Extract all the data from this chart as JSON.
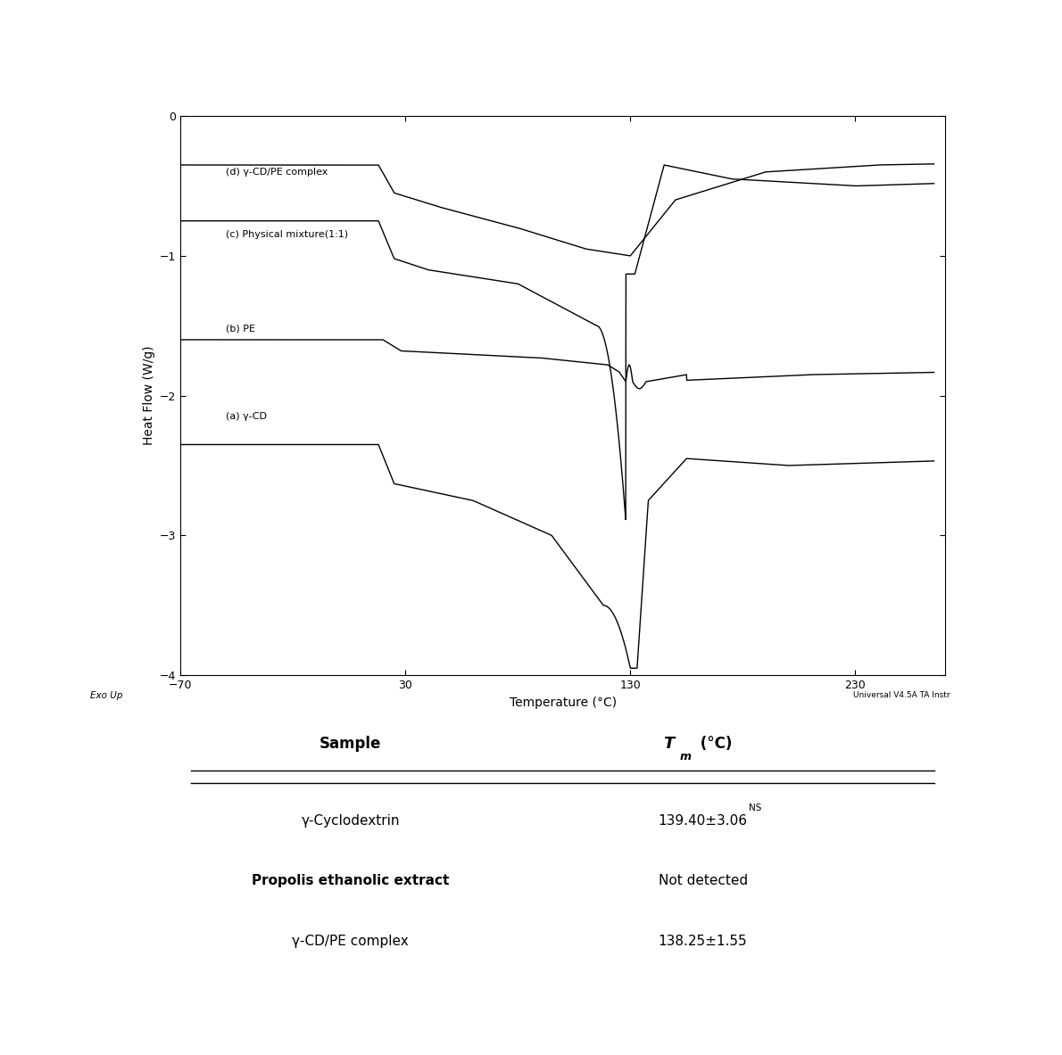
{
  "xlim": [
    -70,
    270
  ],
  "ylim": [
    -4,
    0
  ],
  "yticks": [
    0,
    -1,
    -2,
    -3,
    -4
  ],
  "xticks": [
    -70,
    30,
    130,
    230
  ],
  "xlabel": "Temperature (°C)",
  "ylabel": "Heat Flow (W/g)",
  "exo_up_label": "Exo Up",
  "universal_label": "Universal V4.5A TA Instr",
  "curve_color": "#000000",
  "background_color": "#ffffff",
  "label_d": "(d) γ-CD/PE complex",
  "label_c": "(c) Physical mixture(1:1)",
  "label_b": "(b) PE",
  "label_a": "(a) γ-CD",
  "table_header_sample": "Sample",
  "table_header_T": "T",
  "table_header_m": "m",
  "table_header_unit": " (°C)",
  "row1_sample": "γ-Cyclodextrin",
  "row1_tm": "139.40±3.06",
  "row1_super": "NS",
  "row1_bold": false,
  "row2_sample": "Propolis ethanolic extract",
  "row2_tm": "Not detected",
  "row2_super": "",
  "row2_bold": true,
  "row3_sample": "γ-CD/PE complex",
  "row3_tm": "138.25±1.55",
  "row3_super": "",
  "row3_bold": false
}
